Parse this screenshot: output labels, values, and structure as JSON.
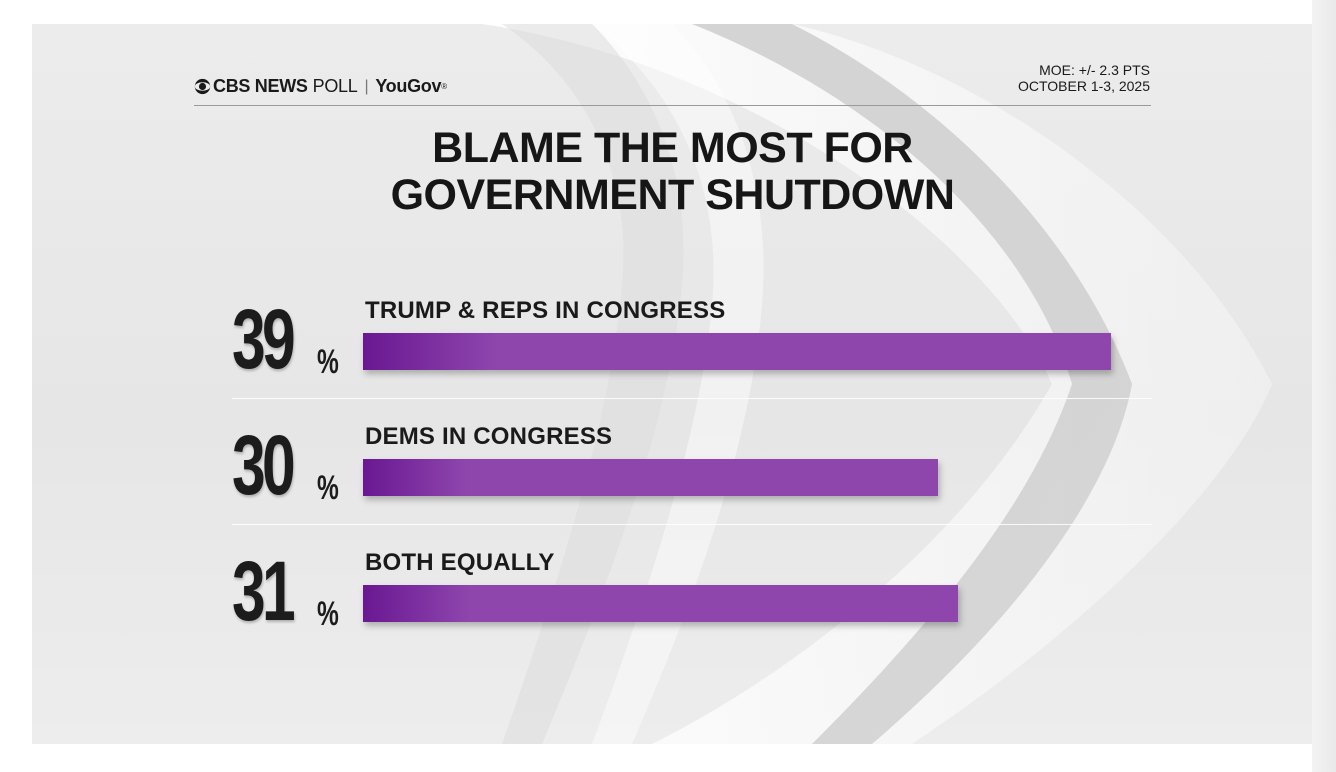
{
  "header": {
    "brand_network": "CBS NEWS",
    "brand_poll": "POLL",
    "brand_separator": "|",
    "brand_partner": "YouGov",
    "brand_partner_mark": "®",
    "moe": "MOE: +/- 2.3 PTS",
    "date": "OCTOBER 1-3, 2025"
  },
  "colors": {
    "bar_start": "#6a1892",
    "bar_end": "#8e46ad",
    "text": "#1a1a1a"
  },
  "chart_data": {
    "type": "bar",
    "orientation": "horizontal",
    "title": "BLAME THE MOST FOR GOVERNMENT SHUTDOWN",
    "title_lines": [
      "BLAME THE MOST FOR",
      "GOVERNMENT SHUTDOWN"
    ],
    "categories": [
      "TRUMP & REPS IN CONGRESS",
      "DEMS IN CONGRESS",
      "BOTH EQUALLY"
    ],
    "values": [
      39,
      30,
      31
    ],
    "unit": "%",
    "xlim": [
      0,
      39
    ],
    "grid": false,
    "legend": "none"
  }
}
